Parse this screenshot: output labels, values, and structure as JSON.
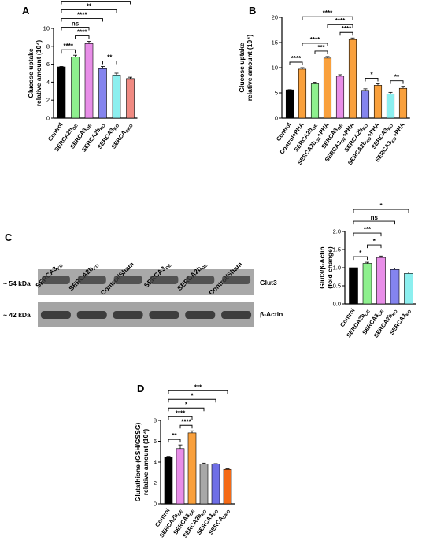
{
  "figure": {
    "panels": [
      {
        "letter": "A"
      },
      {
        "letter": "B"
      },
      {
        "letter": "C"
      },
      {
        "letter": "D"
      }
    ]
  },
  "blot": {
    "lanes": [
      "SERCA3KO",
      "SERCA2bKO",
      "Control/Sham",
      "SERCA3OE",
      "SERCA2bOE",
      "Control/Sham"
    ],
    "lane_subscripts": [
      [
        "SERCA3",
        "KO"
      ],
      [
        "SERCA2b",
        "KO"
      ],
      [
        "Control/Sham",
        ""
      ],
      [
        "SERCA3",
        "OE"
      ],
      [
        "SERCA2b",
        "OE"
      ],
      [
        "Control/Sham",
        ""
      ]
    ],
    "rows": [
      {
        "marker": "~ 54 kDa",
        "protein": "Glut3"
      },
      {
        "marker": "~ 42 kDa",
        "protein": "β-Actin"
      }
    ]
  },
  "chart_data": [
    {
      "id": "A",
      "type": "bar",
      "ylabel_lines": [
        "Glucose uptake",
        "relative amount (10⁴)"
      ],
      "ylim": [
        0,
        10
      ],
      "yticks": [
        0,
        2,
        4,
        6,
        8,
        10
      ],
      "categories": [
        [
          "Control",
          ""
        ],
        [
          "SERCA2b",
          "OE"
        ],
        [
          "SERCA3",
          "OE"
        ],
        [
          "SERCA2b",
          "KO"
        ],
        [
          "SERCA3",
          "KO"
        ],
        [
          "SERCA",
          "DKO"
        ]
      ],
      "values": [
        5.7,
        6.8,
        8.3,
        5.5,
        4.8,
        4.4
      ],
      "errors": [
        0.05,
        0.2,
        0.25,
        0.25,
        0.2,
        0.15
      ],
      "colors": [
        "#000000",
        "#8ef08e",
        "#e88ee8",
        "#8484ee",
        "#8cefef",
        "#f08a82"
      ],
      "comparisons": [
        {
          "a": 0,
          "b": 1,
          "label": "****"
        },
        {
          "a": 1,
          "b": 2,
          "label": "****"
        },
        {
          "a": 0,
          "b": 2,
          "label": "ns"
        },
        {
          "a": 0,
          "b": 3,
          "label": "****"
        },
        {
          "a": 3,
          "b": 4,
          "label": "**"
        },
        {
          "a": 0,
          "b": 4,
          "label": "**"
        },
        {
          "a": 0,
          "b": 5,
          "label": "****"
        }
      ]
    },
    {
      "id": "B",
      "type": "bar",
      "ylabel_lines": [
        "Glucose uptake",
        "relative amount (10⁴)"
      ],
      "ylim": [
        0,
        20
      ],
      "yticks": [
        0,
        5,
        10,
        15,
        20
      ],
      "categories": [
        [
          "Control",
          ""
        ],
        [
          "Control+PHA",
          ""
        ],
        [
          "SERCA2b",
          "OE"
        ],
        [
          "SERCA2b",
          "OE",
          "+PHA"
        ],
        [
          "SERCA3",
          "OE"
        ],
        [
          "SERCA3",
          "OE",
          "+PHA"
        ],
        [
          "SERCA2b",
          "KO"
        ],
        [
          "SERCA2b",
          "KO",
          "+PHA"
        ],
        [
          "SERCA3",
          "KO"
        ],
        [
          "SERCA3",
          "KO",
          "+PHA"
        ]
      ],
      "values": [
        5.6,
        9.7,
        6.8,
        11.9,
        8.3,
        15.6,
        5.5,
        6.5,
        4.8,
        5.9
      ],
      "errors": [
        0.05,
        0.3,
        0.3,
        0.3,
        0.3,
        0.3,
        0.3,
        0.3,
        0.3,
        0.4
      ],
      "colors": [
        "#000000",
        "#f9a03c",
        "#8ef08e",
        "#f9a03c",
        "#e88ee8",
        "#f9a03c",
        "#8484ee",
        "#f9a03c",
        "#8cefef",
        "#f9a03c"
      ],
      "comparisons": [
        {
          "a": 0,
          "b": 1,
          "label": "****"
        },
        {
          "a": 2,
          "b": 3,
          "label": "***"
        },
        {
          "a": 1,
          "b": 3,
          "label": "****"
        },
        {
          "a": 4,
          "b": 5,
          "label": "****"
        },
        {
          "a": 3,
          "b": 5,
          "label": "****"
        },
        {
          "a": 1,
          "b": 5,
          "label": "****"
        },
        {
          "a": 6,
          "b": 7,
          "label": "*"
        },
        {
          "a": 8,
          "b": 9,
          "label": "**"
        }
      ]
    },
    {
      "id": "C",
      "type": "bar",
      "ylabel_lines": [
        "Glut3/β-Actin",
        "(fold change)"
      ],
      "ylim": [
        0,
        2
      ],
      "yticks": [
        0.0,
        0.5,
        1.0,
        1.5,
        2.0
      ],
      "tick_decimals": 1,
      "categories": [
        [
          "Control",
          ""
        ],
        [
          "SERCA2b",
          "OE"
        ],
        [
          "SERCA3",
          "OE"
        ],
        [
          "SERCA2b",
          "KO"
        ],
        [
          "SERCA3",
          "KO"
        ]
      ],
      "values": [
        1.0,
        1.12,
        1.28,
        0.95,
        0.84
      ],
      "errors": [
        0.0,
        0.03,
        0.04,
        0.04,
        0.04
      ],
      "colors": [
        "#000000",
        "#8ef08e",
        "#e88ee8",
        "#8484ee",
        "#8cefef"
      ],
      "comparisons": [
        {
          "a": 0,
          "b": 1,
          "label": "*"
        },
        {
          "a": 1,
          "b": 2,
          "label": "*"
        },
        {
          "a": 0,
          "b": 2,
          "label": "***"
        },
        {
          "a": 0,
          "b": 3,
          "label": "ns"
        },
        {
          "a": 0,
          "b": 4,
          "label": "*"
        }
      ]
    },
    {
      "id": "D",
      "type": "bar",
      "ylabel_lines": [
        "Glutathione (GSH/GSSG)",
        "relative amount (10⁴)"
      ],
      "ylim": [
        0,
        8
      ],
      "yticks": [
        0,
        2,
        4,
        6,
        8
      ],
      "categories": [
        [
          "Control",
          ""
        ],
        [
          "SERCA2b",
          "OE"
        ],
        [
          "SERCA3",
          "OE"
        ],
        [
          "SERCA2b",
          "KO"
        ],
        [
          "SERCA3",
          "KO"
        ],
        [
          "SERCA",
          "DKO"
        ]
      ],
      "values": [
        4.5,
        5.3,
        6.8,
        3.8,
        3.8,
        3.3
      ],
      "errors": [
        0.05,
        0.35,
        0.2,
        0.1,
        0.05,
        0.05
      ],
      "colors": [
        "#000000",
        "#e88ee8",
        "#f9a03c",
        "#a8a8a8",
        "#6e6ee6",
        "#f46a16"
      ],
      "comparisons": [
        {
          "a": 0,
          "b": 1,
          "label": "**"
        },
        {
          "a": 1,
          "b": 2,
          "label": "****"
        },
        {
          "a": 0,
          "b": 2,
          "label": "****"
        },
        {
          "a": 0,
          "b": 3,
          "label": "*"
        },
        {
          "a": 0,
          "b": 4,
          "label": "*"
        },
        {
          "a": 0,
          "b": 5,
          "label": "***"
        }
      ]
    }
  ]
}
